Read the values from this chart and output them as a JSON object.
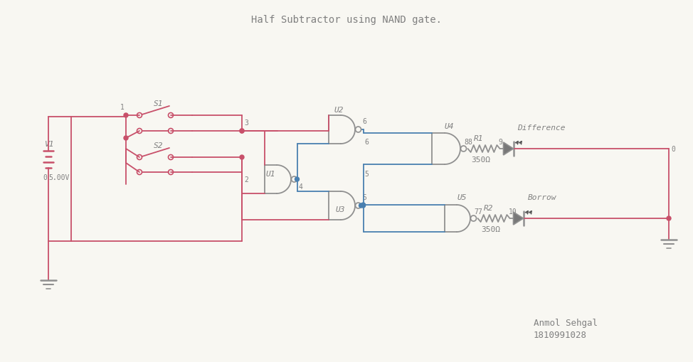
{
  "title": "Half Subtractor using NAND gate.",
  "author": "Anmol Sehgal",
  "student_id": "1810991028",
  "bg_color": "#f8f7f2",
  "wire_red": "#c8506a",
  "wire_blue": "#4a80b0",
  "gate_gray": "#909090",
  "text_gray": "#808080",
  "title_fontsize": 10,
  "label_fontsize": 8,
  "resistor_value": "350Ω"
}
